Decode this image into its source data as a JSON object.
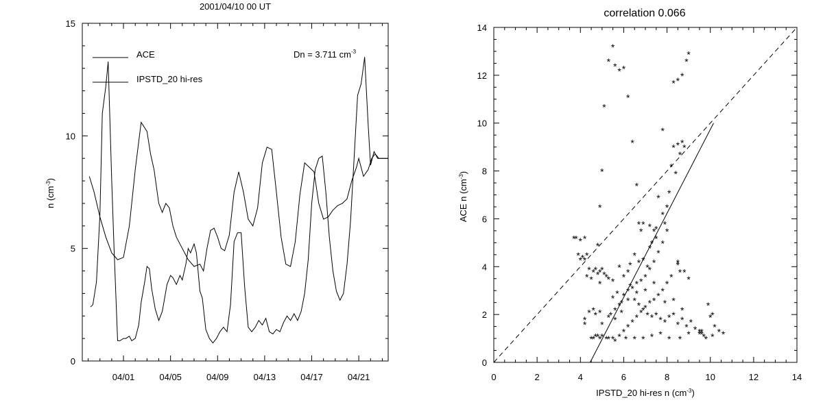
{
  "chart_data": [
    {
      "type": "line",
      "title": "2001/04/10 00 UT",
      "ylabel_main": "n (cm",
      "ylabel_sup": "-3",
      "ylabel_close": ")",
      "annotation_main": "Dn = 3.711 cm",
      "annotation_sup": "-3",
      "legend": [
        "ACE",
        "IPSTD_20 hi-res"
      ],
      "x_tick_labels": [
        "04/01",
        "04/05",
        "04/09",
        "04/13",
        "04/17",
        "04/21"
      ],
      "x_tick_days": [
        1,
        5,
        9,
        13,
        17,
        21
      ],
      "xlim_days": [
        -2.5,
        23.5
      ],
      "ylim": [
        0,
        15
      ],
      "y_ticks": [
        0,
        5,
        10,
        15
      ],
      "series": [
        {
          "name": "ACE",
          "x_days": [
            -1.8,
            -1.6,
            -1.3,
            -1.0,
            -0.8,
            -0.5,
            -0.3,
            0.0,
            0.2,
            0.5,
            0.7,
            1.0,
            1.2,
            1.5,
            1.7,
            2.0,
            2.3,
            2.5,
            2.8,
            3.0,
            3.2,
            3.4,
            3.7,
            4.0,
            4.3,
            4.5,
            4.7,
            5.0,
            5.2,
            5.5,
            5.8,
            6.0,
            6.3,
            6.5,
            6.7,
            7.0,
            7.2,
            7.5,
            7.7,
            8.0,
            8.3,
            8.6,
            8.9,
            9.2,
            9.5,
            9.8,
            10.1,
            10.4,
            10.7,
            11.0,
            11.3,
            11.6,
            11.9,
            12.2,
            12.5,
            12.8,
            13.1,
            13.4,
            13.7,
            14.0,
            14.3,
            14.6,
            14.9,
            15.2,
            15.5,
            15.8,
            16.1,
            16.4,
            16.7,
            17.0,
            17.3,
            17.6,
            17.9,
            18.2,
            18.5,
            18.8,
            19.1,
            19.4,
            19.7,
            20.0,
            20.3,
            20.6,
            20.9,
            21.2,
            21.5,
            21.8,
            22.0,
            22.3,
            22.6,
            22.9,
            23.2,
            23.5
          ],
          "values": [
            2.4,
            2.5,
            3.5,
            6.5,
            11.0,
            12.2,
            13.3,
            8.0,
            5.0,
            0.9,
            0.9,
            1.0,
            1.0,
            1.1,
            0.9,
            1.0,
            1.6,
            2.6,
            3.5,
            4.2,
            4.1,
            3.2,
            2.3,
            1.8,
            2.2,
            2.8,
            3.4,
            3.8,
            3.7,
            3.4,
            3.8,
            3.6,
            4.3,
            5.0,
            4.8,
            5.2,
            4.8,
            3.1,
            2.8,
            1.4,
            1.0,
            0.8,
            1.0,
            1.3,
            1.5,
            1.3,
            2.5,
            5.3,
            5.7,
            5.7,
            3.3,
            1.5,
            1.3,
            1.5,
            1.8,
            1.6,
            1.9,
            1.3,
            1.2,
            1.4,
            1.3,
            1.7,
            2.0,
            1.8,
            2.1,
            1.8,
            2.2,
            3.0,
            4.5,
            7.0,
            8.5,
            9.0,
            9.1,
            7.5,
            5.5,
            4.0,
            3.1,
            2.7,
            3.0,
            4.3,
            6.2,
            9.0,
            11.8,
            12.3,
            13.5,
            10.5,
            8.7,
            9.3,
            9.0,
            9.0,
            9.0,
            9.0
          ]
        },
        {
          "name": "IPSTD_20 hi-res",
          "x_days": [
            -1.9,
            -1.5,
            -1.0,
            -0.5,
            0.0,
            0.5,
            1.0,
            1.5,
            2.0,
            2.5,
            3.0,
            3.3,
            3.6,
            4.0,
            4.3,
            4.6,
            4.9,
            5.2,
            5.5,
            6.0,
            6.5,
            7.0,
            7.5,
            7.8,
            8.1,
            8.4,
            8.7,
            9.0,
            9.3,
            9.6,
            10.0,
            10.4,
            10.8,
            11.2,
            11.6,
            12.0,
            12.4,
            12.8,
            13.2,
            13.6,
            14.0,
            14.4,
            14.8,
            15.2,
            15.6,
            16.0,
            16.4,
            16.8,
            17.2,
            17.6,
            18.0,
            18.4,
            18.8,
            19.2,
            19.6,
            20.0,
            20.4,
            20.8,
            21.0,
            21.4,
            21.8,
            22.1,
            22.4,
            22.7,
            23.0,
            23.3
          ],
          "values": [
            8.2,
            7.5,
            6.4,
            5.5,
            4.8,
            4.5,
            4.6,
            6.0,
            8.5,
            10.6,
            10.2,
            9.2,
            8.5,
            7.0,
            6.6,
            7.0,
            6.8,
            6.0,
            5.5,
            5.0,
            4.5,
            4.2,
            4.3,
            4.0,
            5.0,
            5.8,
            5.9,
            5.5,
            5.0,
            4.9,
            5.6,
            7.5,
            8.4,
            7.5,
            6.3,
            6.0,
            6.8,
            8.8,
            9.5,
            9.4,
            7.5,
            5.5,
            4.3,
            4.2,
            5.3,
            7.4,
            8.8,
            8.6,
            8.4,
            7.0,
            6.3,
            6.4,
            6.7,
            6.9,
            7.0,
            7.2,
            8.0,
            8.6,
            9.0,
            8.2,
            8.5,
            9.0,
            9.2,
            9.0,
            9.0,
            9.0
          ]
        }
      ]
    },
    {
      "type": "scatter",
      "title": "correlation 0.066",
      "xlabel_main": "IPSTD_20 hi-res n (cm",
      "xlabel_sup": "-3",
      "xlabel_close": ")",
      "ylabel_main": "ACE n (cm",
      "ylabel_sup": "-3",
      "ylabel_close": ")",
      "xlim": [
        0,
        14
      ],
      "ylim": [
        0,
        14
      ],
      "x_ticks": [
        0,
        2,
        4,
        6,
        8,
        10,
        12,
        14
      ],
      "y_ticks": [
        0,
        2,
        4,
        6,
        8,
        10,
        12,
        14
      ],
      "marker": "*",
      "reference_line": "dashed y = x",
      "fit_line": {
        "x": [
          4.45,
          10.15
        ],
        "y": [
          0,
          10.0
        ]
      },
      "points": [
        [
          3.7,
          5.2
        ],
        [
          3.8,
          5.2
        ],
        [
          4.0,
          5.1
        ],
        [
          4.2,
          5.2
        ],
        [
          3.9,
          4.5
        ],
        [
          4.0,
          4.3
        ],
        [
          4.1,
          4.4
        ],
        [
          4.2,
          4.3
        ],
        [
          4.3,
          4.5
        ],
        [
          4.4,
          3.9
        ],
        [
          4.3,
          3.6
        ],
        [
          4.5,
          3.5
        ],
        [
          4.6,
          3.8
        ],
        [
          4.7,
          3.9
        ],
        [
          4.8,
          3.7
        ],
        [
          4.9,
          3.8
        ],
        [
          5.0,
          3.9
        ],
        [
          5.1,
          3.7
        ],
        [
          5.2,
          3.6
        ],
        [
          4.9,
          3.3
        ],
        [
          5.3,
          3.5
        ],
        [
          5.5,
          3.4
        ],
        [
          4.2,
          1.8
        ],
        [
          4.2,
          1.6
        ],
        [
          4.4,
          2.1
        ],
        [
          4.6,
          2.2
        ],
        [
          4.7,
          2.0
        ],
        [
          4.9,
          2.1
        ],
        [
          5.0,
          1.6
        ],
        [
          4.5,
          1.0
        ],
        [
          4.6,
          1.0
        ],
        [
          4.7,
          1.1
        ],
        [
          4.8,
          1.1
        ],
        [
          4.9,
          1.0
        ],
        [
          5.0,
          1.1
        ],
        [
          5.2,
          1.0
        ],
        [
          5.3,
          1.0
        ],
        [
          5.5,
          1.0
        ],
        [
          5.4,
          2.0
        ],
        [
          5.6,
          2.2
        ],
        [
          5.8,
          2.4
        ],
        [
          5.9,
          2.5
        ],
        [
          5.5,
          2.7
        ],
        [
          5.7,
          2.9
        ],
        [
          6.0,
          2.8
        ],
        [
          6.2,
          3.0
        ],
        [
          6.3,
          3.2
        ],
        [
          6.4,
          3.1
        ],
        [
          6.6,
          3.3
        ],
        [
          6.8,
          3.4
        ],
        [
          7.0,
          3.6
        ],
        [
          7.2,
          3.9
        ],
        [
          7.4,
          4.2
        ],
        [
          7.6,
          4.6
        ],
        [
          7.8,
          5.0
        ],
        [
          8.0,
          5.5
        ],
        [
          7.5,
          5.6
        ],
        [
          7.2,
          5.7
        ],
        [
          6.9,
          5.8
        ],
        [
          6.7,
          5.8
        ],
        [
          6.5,
          4.5
        ],
        [
          6.7,
          4.2
        ],
        [
          6.9,
          4.3
        ],
        [
          7.1,
          4.0
        ],
        [
          6.3,
          4.1
        ],
        [
          6.2,
          3.8
        ],
        [
          6.0,
          3.6
        ],
        [
          5.8,
          4.0
        ],
        [
          6.5,
          2.6
        ],
        [
          6.7,
          2.4
        ],
        [
          6.9,
          2.2
        ],
        [
          7.1,
          2.0
        ],
        [
          7.3,
          1.9
        ],
        [
          7.5,
          2.0
        ],
        [
          7.7,
          1.8
        ],
        [
          7.9,
          1.7
        ],
        [
          8.1,
          1.9
        ],
        [
          8.3,
          2.0
        ],
        [
          8.5,
          1.6
        ],
        [
          8.7,
          1.8
        ],
        [
          8.9,
          1.5
        ],
        [
          9.1,
          1.7
        ],
        [
          9.3,
          1.4
        ],
        [
          9.5,
          1.3
        ],
        [
          9.6,
          1.2
        ],
        [
          9.7,
          1.1
        ],
        [
          9.5,
          1.2
        ],
        [
          9.6,
          1.3
        ],
        [
          9.8,
          1.0
        ],
        [
          10.0,
          1.9
        ],
        [
          10.2,
          1.5
        ],
        [
          10.4,
          1.3
        ],
        [
          10.6,
          1.2
        ],
        [
          10.1,
          1.1
        ],
        [
          9.9,
          2.4
        ],
        [
          10.1,
          2.0
        ],
        [
          9.0,
          3.5
        ],
        [
          8.6,
          3.8
        ],
        [
          8.5,
          4.2
        ],
        [
          8.5,
          4.1
        ],
        [
          8.8,
          3.8
        ],
        [
          8.2,
          3.6
        ],
        [
          8.0,
          3.3
        ],
        [
          7.8,
          3.0
        ],
        [
          7.6,
          2.8
        ],
        [
          7.4,
          2.6
        ],
        [
          7.2,
          2.5
        ],
        [
          7.0,
          2.3
        ],
        [
          6.8,
          2.1
        ],
        [
          6.6,
          1.9
        ],
        [
          6.4,
          1.7
        ],
        [
          6.2,
          1.5
        ],
        [
          6.0,
          1.3
        ],
        [
          5.8,
          1.1
        ],
        [
          5.6,
          0.9
        ],
        [
          6.1,
          1.0
        ],
        [
          6.5,
          1.0
        ],
        [
          6.9,
          1.0
        ],
        [
          7.3,
          1.1
        ],
        [
          7.7,
          1.2
        ],
        [
          8.1,
          1.0
        ],
        [
          8.6,
          1.0
        ],
        [
          9.0,
          1.2
        ],
        [
          7.9,
          2.5
        ],
        [
          8.3,
          2.6
        ],
        [
          8.7,
          2.2
        ],
        [
          7.4,
          3.3
        ],
        [
          7.0,
          3.0
        ],
        [
          6.6,
          2.9
        ],
        [
          6.2,
          2.6
        ],
        [
          5.9,
          2.1
        ],
        [
          5.6,
          1.8
        ],
        [
          5.3,
          1.9
        ],
        [
          4.8,
          4.9
        ],
        [
          4.9,
          6.5
        ],
        [
          5.0,
          8.0
        ],
        [
          5.1,
          10.7
        ],
        [
          5.3,
          12.6
        ],
        [
          5.5,
          13.2
        ],
        [
          5.6,
          12.4
        ],
        [
          5.8,
          12.2
        ],
        [
          6.0,
          12.3
        ],
        [
          6.2,
          11.1
        ],
        [
          6.4,
          9.2
        ],
        [
          6.6,
          7.4
        ],
        [
          6.8,
          5.5
        ],
        [
          7.4,
          5.5
        ],
        [
          7.6,
          6.9
        ],
        [
          7.8,
          9.7
        ],
        [
          8.0,
          6.5
        ],
        [
          8.1,
          7.1
        ],
        [
          8.3,
          9.0
        ],
        [
          8.4,
          7.9
        ],
        [
          8.5,
          9.1
        ],
        [
          8.6,
          8.7
        ],
        [
          8.7,
          9.2
        ],
        [
          8.8,
          9.0
        ],
        [
          8.2,
          8.2
        ],
        [
          8.3,
          11.7
        ],
        [
          8.5,
          11.8
        ],
        [
          8.7,
          12.0
        ],
        [
          8.9,
          12.6
        ],
        [
          9.0,
          12.9
        ],
        [
          7.8,
          6.2
        ],
        [
          7.9,
          5.8
        ],
        [
          7.2,
          4.8
        ],
        [
          7.3,
          5.0
        ],
        [
          7.5,
          5.2
        ]
      ]
    }
  ]
}
